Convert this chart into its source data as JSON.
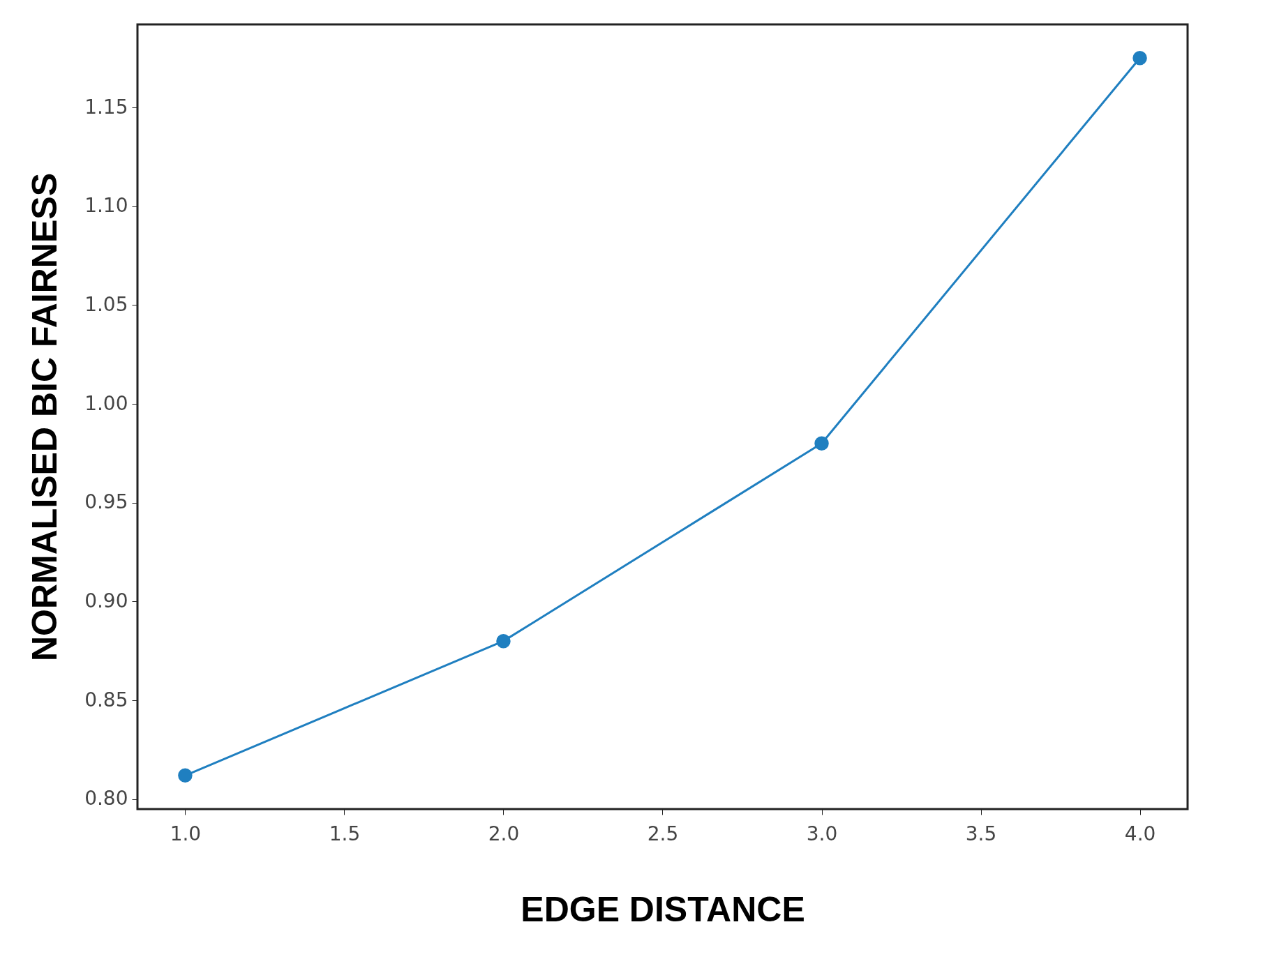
{
  "chart_data": {
    "type": "line",
    "xlabel": "EDGE DISTANCE",
    "ylabel": "NORMALISED BIC FAIRNESS",
    "x": [
      1,
      2,
      3,
      4
    ],
    "series": [
      {
        "color": "#1f7fc0",
        "values": [
          0.812,
          0.88,
          0.98,
          1.175
        ]
      }
    ],
    "xlim": [
      0.85,
      4.15
    ],
    "xticks": [
      {
        "value": 1,
        "label": "1.0"
      },
      {
        "value": 1.5,
        "label": "1.5"
      },
      {
        "value": 2,
        "label": "2.0"
      },
      {
        "value": 2.5,
        "label": "2.5"
      },
      {
        "value": 3,
        "label": "3.0"
      },
      {
        "value": 3.5,
        "label": "3.5"
      },
      {
        "value": 4,
        "label": "4.0"
      }
    ],
    "ylim": [
      0.795,
      1.192
    ],
    "yticks": [
      {
        "value": 0.8,
        "label": "0.80"
      },
      {
        "value": 0.85,
        "label": "0.85"
      },
      {
        "value": 0.9,
        "label": "0.90"
      },
      {
        "value": 0.95,
        "label": "0.95"
      },
      {
        "value": 1,
        "label": "1.00"
      },
      {
        "value": 1.05,
        "label": "1.05"
      },
      {
        "value": 1.1,
        "label": "1.10"
      },
      {
        "value": 1.15,
        "label": "1.15"
      }
    ],
    "marker": "circle",
    "line_style": "solid",
    "grid": false
  }
}
